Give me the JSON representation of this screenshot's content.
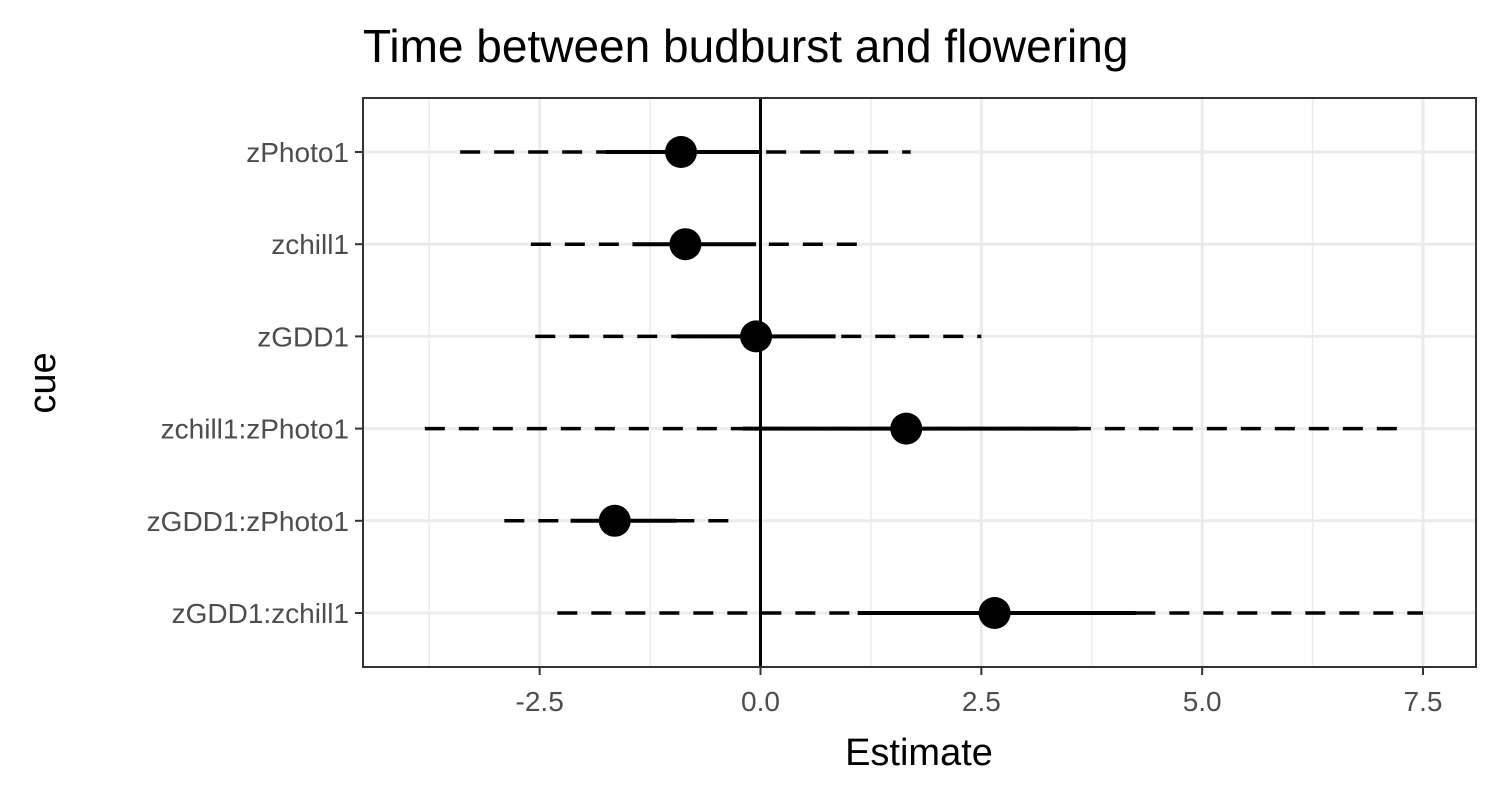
{
  "chart_data": {
    "type": "scatter",
    "title": "Time between budburst and flowering",
    "xlabel": "Estimate",
    "ylabel": "cue",
    "xlim": [
      -4.5,
      8.1
    ],
    "x_ticks": [
      {
        "value": -2.5,
        "label": "-2.5"
      },
      {
        "value": 0,
        "label": "0.0"
      },
      {
        "value": 2.5,
        "label": "2.5"
      },
      {
        "value": 5,
        "label": "5.0"
      },
      {
        "value": 7.5,
        "label": "7.5"
      }
    ],
    "reference_line": 0,
    "grid": true,
    "legend": "none",
    "series": [
      {
        "label": "zPhoto1",
        "estimate": -0.9,
        "inner": [
          -1.75,
          0.0
        ],
        "outer": [
          -3.4,
          1.7
        ]
      },
      {
        "label": "zchill1",
        "estimate": -0.85,
        "inner": [
          -1.45,
          -0.05
        ],
        "outer": [
          -2.6,
          1.2
        ]
      },
      {
        "label": "zGDD1",
        "estimate": -0.05,
        "inner": [
          -0.95,
          0.85
        ],
        "outer": [
          -2.55,
          2.5
        ]
      },
      {
        "label": "zchill1:zPhoto1",
        "estimate": 1.65,
        "inner": [
          -0.2,
          3.6
        ],
        "outer": [
          -3.8,
          7.25
        ]
      },
      {
        "label": "zGDD1:zPhoto1",
        "estimate": -1.65,
        "inner": [
          -2.15,
          -0.95
        ],
        "outer": [
          -2.9,
          -0.3
        ]
      },
      {
        "label": "zGDD1:zchill1",
        "estimate": 2.65,
        "inner": [
          1.1,
          4.25
        ],
        "outer": [
          -2.3,
          7.5
        ]
      }
    ]
  },
  "colors": {
    "point": "#000000",
    "interval": "#000000",
    "grid": "#ebebeb",
    "panel_border": "#333333",
    "tick_text": "#4d4d4d"
  }
}
